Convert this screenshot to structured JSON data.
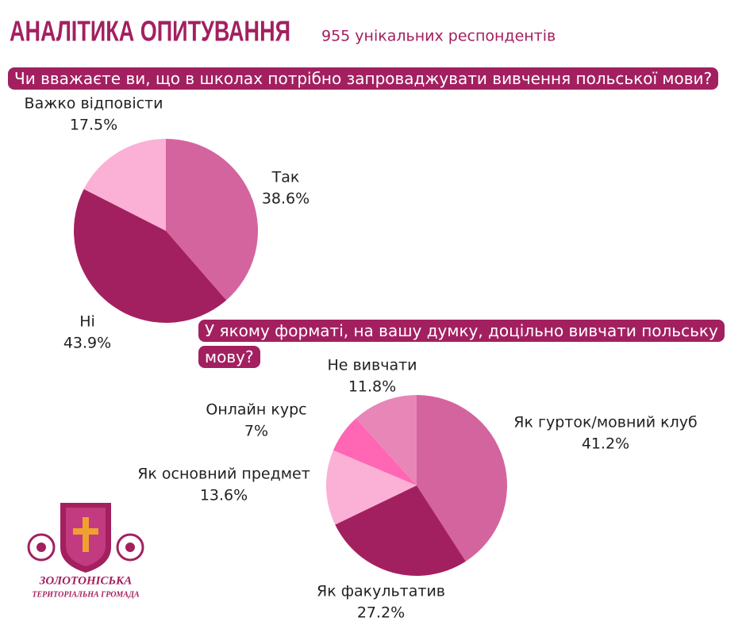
{
  "header": {
    "title": "АНАЛІТИКА ОПИТУВАННЯ",
    "subtitle": "955 унікальних респондентів"
  },
  "logo": {
    "name": "ЗОЛОТОНІСЬКА",
    "subname": "ТЕРИТОРІАЛЬНА ГРОМАДА"
  },
  "chart_data": [
    {
      "type": "pie",
      "title": "Чи вважаєте ви, що в школах потрібно запроваджувати вивчення польської мови?",
      "categories": [
        "Так",
        "Ні",
        "Важко відповісти"
      ],
      "values": [
        38.6,
        43.9,
        17.5
      ],
      "value_labels": [
        "38.6%",
        "43.9%",
        "17.5%"
      ],
      "colors": [
        "#d4649e",
        "#a32060",
        "#fbb0d5"
      ]
    },
    {
      "type": "pie",
      "title": "У якому форматі, на вашу думку, доцільно вивчати польську мову?",
      "categories": [
        "Як гурток/мовний клуб",
        "Як факультатив",
        "Як основний предмет",
        "Онлайн курс",
        "Не вивчати"
      ],
      "values": [
        41.2,
        27.2,
        13.6,
        7,
        11.8
      ],
      "value_labels": [
        "41.2%",
        "27.2%",
        "13.6%",
        "7%",
        "11.8%"
      ],
      "colors": [
        "#d4649e",
        "#a32060",
        "#fbb0d5",
        "#ff66b3",
        "#e886b8"
      ]
    }
  ]
}
